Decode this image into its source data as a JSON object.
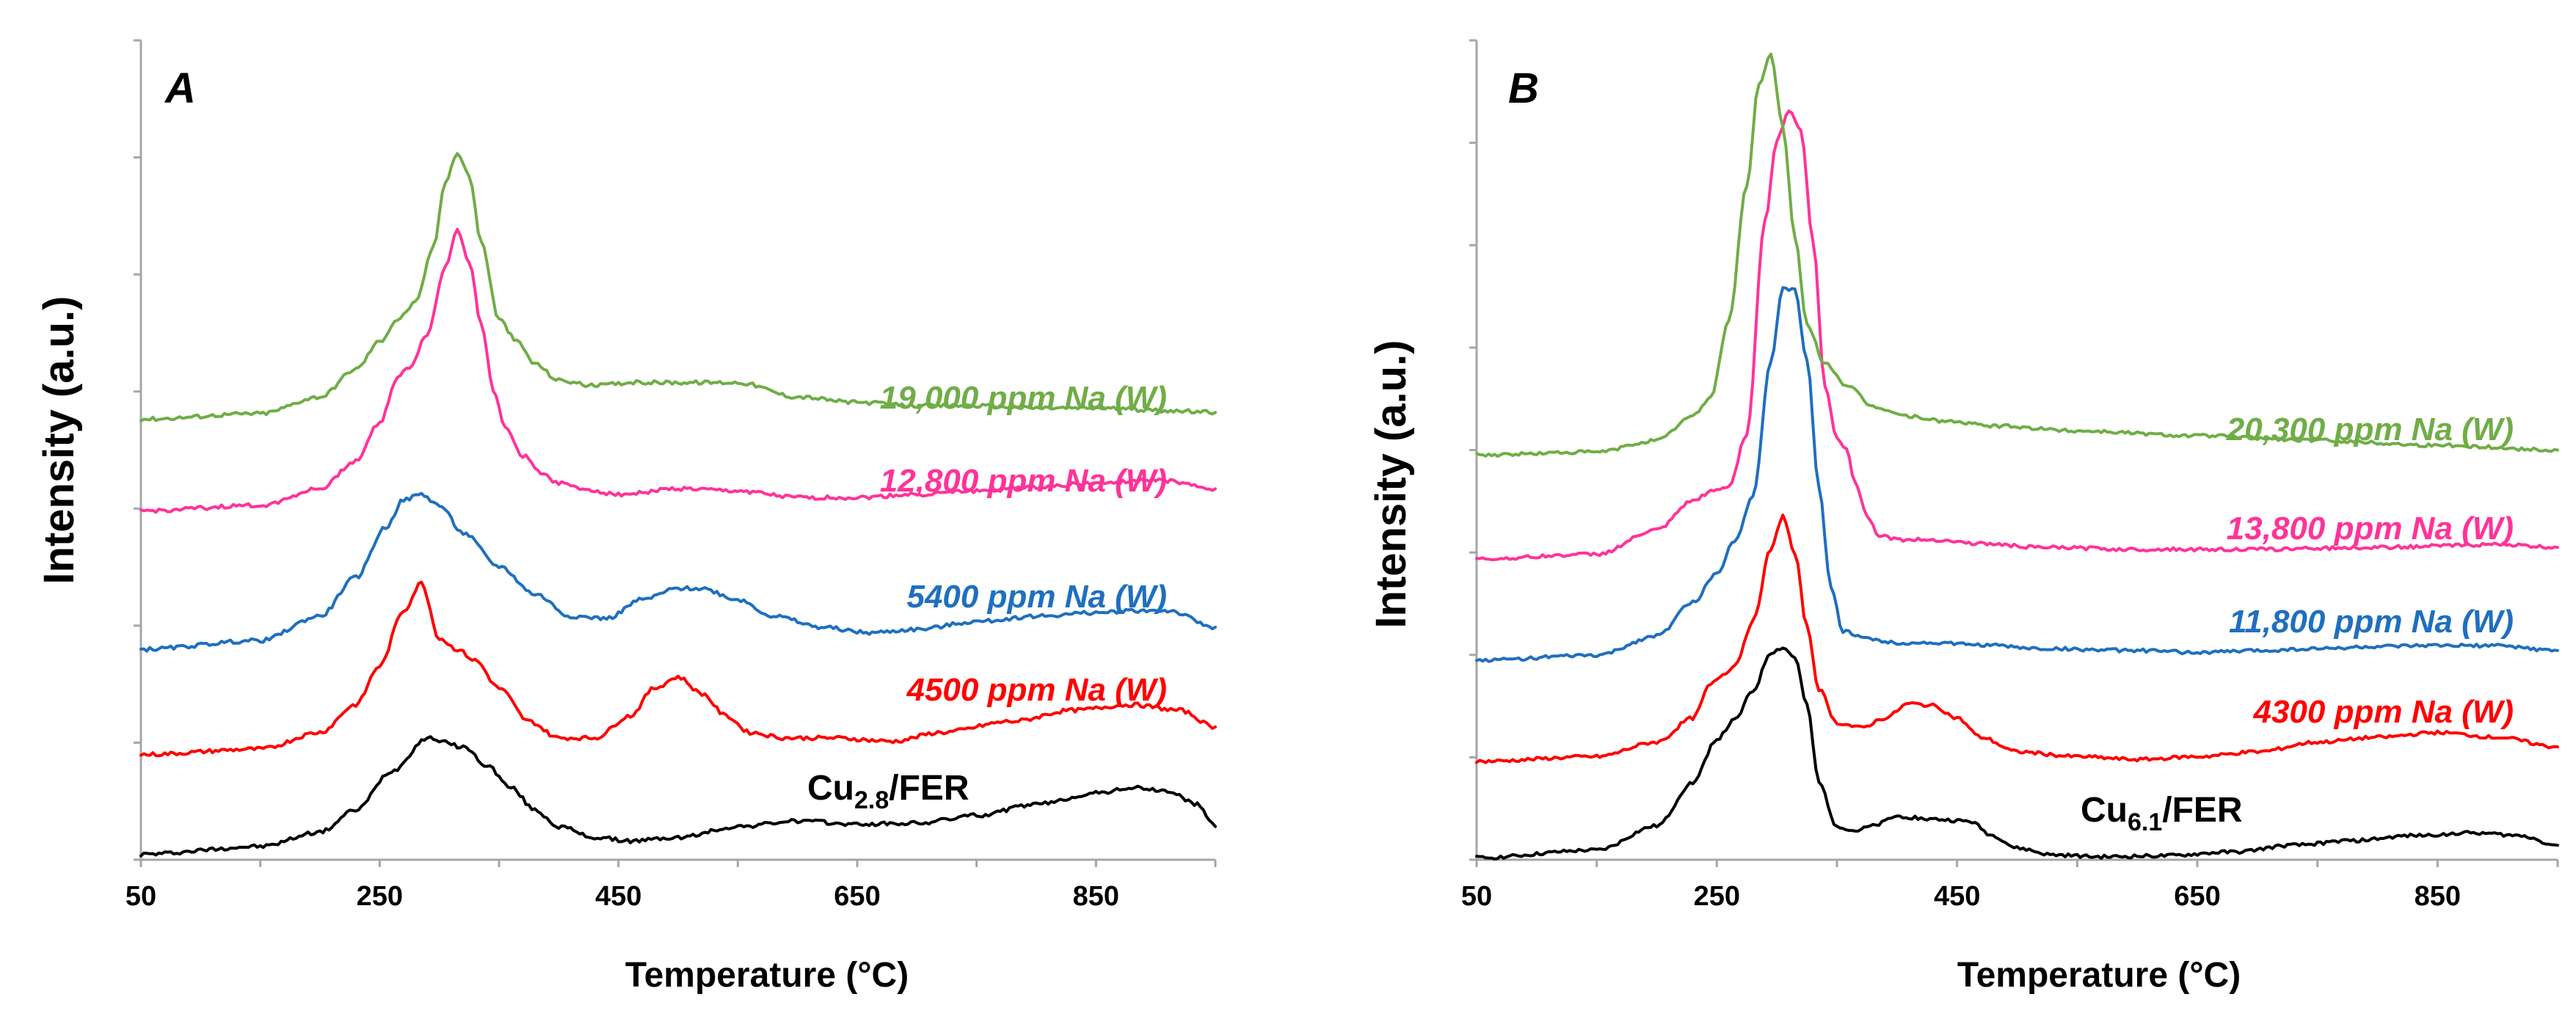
{
  "chart_data": [
    {
      "type": "line",
      "panel_label": "A",
      "xlabel": "Temperature (°C)",
      "ylabel": "Intensity (a.u.)",
      "xlim": [
        50,
        950
      ],
      "xticks": [
        50,
        250,
        450,
        650,
        850
      ],
      "ylim": [
        0,
        7.4
      ],
      "y_ticks_count": 7,
      "sample_label": "Cu",
      "sample_sub": "2.8",
      "sample_suffix": "/FER",
      "series": [
        {
          "name": "Cu2.8/FER",
          "color": "#000000",
          "offset": 0.0,
          "x": [
            50,
            150,
            200,
            230,
            260,
            290,
            320,
            340,
            360,
            380,
            400,
            430,
            460,
            500,
            550,
            600,
            650,
            700,
            750,
            800,
            850,
            880,
            910,
            935,
            950
          ],
          "y": [
            0.05,
            0.12,
            0.25,
            0.45,
            0.8,
            1.1,
            1.02,
            0.85,
            0.65,
            0.45,
            0.3,
            0.2,
            0.17,
            0.2,
            0.3,
            0.35,
            0.32,
            0.33,
            0.4,
            0.5,
            0.6,
            0.65,
            0.62,
            0.5,
            0.3
          ]
        },
        {
          "name": "4500 ppm Na (W)",
          "color": "#ff0000",
          "offset": 0.95,
          "label": "4500 ppm Na (W)",
          "x": [
            50,
            150,
            200,
            230,
            250,
            270,
            285,
            300,
            315,
            330,
            350,
            375,
            400,
            430,
            460,
            480,
            500,
            520,
            540,
            560,
            590,
            630,
            680,
            720,
            780,
            830,
            880,
            920,
            950
          ],
          "y": [
            0.0,
            0.05,
            0.2,
            0.45,
            0.8,
            1.3,
            1.55,
            1.05,
            0.95,
            0.85,
            0.6,
            0.3,
            0.15,
            0.15,
            0.35,
            0.6,
            0.7,
            0.55,
            0.35,
            0.2,
            0.15,
            0.15,
            0.12,
            0.2,
            0.3,
            0.4,
            0.45,
            0.4,
            0.25
          ]
        },
        {
          "name": "5400 ppm Na (W)",
          "color": "#1f6fbf",
          "offset": 1.9,
          "label": "5400 ppm Na (W)",
          "x": [
            50,
            150,
            200,
            230,
            255,
            270,
            285,
            300,
            320,
            350,
            380,
            410,
            440,
            470,
            500,
            520,
            550,
            580,
            620,
            660,
            700,
            750,
            800,
            850,
            880,
            910,
            950
          ],
          "y": [
            0.0,
            0.08,
            0.3,
            0.65,
            1.1,
            1.35,
            1.4,
            1.3,
            1.05,
            0.75,
            0.5,
            0.3,
            0.28,
            0.45,
            0.55,
            0.55,
            0.45,
            0.3,
            0.2,
            0.15,
            0.18,
            0.25,
            0.3,
            0.33,
            0.35,
            0.35,
            0.2
          ]
        },
        {
          "name": "12,800 ppm Na (W)",
          "color": "#ff3399",
          "offset": 3.15,
          "label": "12,800 ppm Na (W)",
          "x": [
            50,
            150,
            200,
            230,
            250,
            265,
            275,
            290,
            305,
            315,
            325,
            335,
            345,
            355,
            370,
            385,
            400,
            420,
            450,
            500,
            550,
            600,
            650,
            700,
            750,
            800,
            850,
            900,
            950
          ],
          "y": [
            0.0,
            0.05,
            0.2,
            0.45,
            0.8,
            1.2,
            1.3,
            1.6,
            2.2,
            2.55,
            2.25,
            1.7,
            1.1,
            0.75,
            0.5,
            0.35,
            0.25,
            0.2,
            0.15,
            0.2,
            0.18,
            0.12,
            0.12,
            0.15,
            0.18,
            0.22,
            0.25,
            0.28,
            0.2
          ]
        },
        {
          "name": "19,000 ppm Na (W)",
          "color": "#70ad47",
          "offset": 3.98,
          "label": "19,000 ppm Na (W)",
          "x": [
            50,
            150,
            200,
            230,
            250,
            265,
            280,
            295,
            305,
            315,
            325,
            335,
            350,
            365,
            380,
            400,
            430,
            460,
            500,
            550,
            600,
            650,
            700,
            750,
            800,
            850,
            900,
            950
          ],
          "y": [
            0.0,
            0.05,
            0.2,
            0.45,
            0.7,
            0.9,
            1.05,
            1.55,
            2.15,
            2.4,
            2.2,
            1.6,
            0.9,
            0.7,
            0.5,
            0.35,
            0.3,
            0.33,
            0.33,
            0.33,
            0.2,
            0.15,
            0.12,
            0.12,
            0.1,
            0.1,
            0.08,
            0.06
          ]
        }
      ]
    },
    {
      "type": "line",
      "panel_label": "B",
      "xlabel": "Temperature (°C)",
      "ylabel": "Intensity (a.u.)",
      "xlim": [
        50,
        950
      ],
      "xticks": [
        50,
        250,
        450,
        650,
        850
      ],
      "ylim": [
        0,
        8.5
      ],
      "y_ticks_count": 8,
      "sample_label": "Cu",
      "sample_sub": "6.1",
      "sample_suffix": "/FER",
      "series": [
        {
          "name": "Cu6.1/FER",
          "color": "#000000",
          "offset": 0.0,
          "x": [
            50,
            150,
            200,
            230,
            250,
            265,
            280,
            295,
            305,
            315,
            325,
            335,
            350,
            365,
            380,
            400,
            430,
            460,
            480,
            500,
            530,
            570,
            620,
            680,
            730,
            780,
            830,
            880,
            920,
            950
          ],
          "y": [
            0.02,
            0.1,
            0.35,
            0.8,
            1.25,
            1.45,
            1.75,
            2.15,
            2.2,
            2.1,
            1.6,
            0.8,
            0.35,
            0.3,
            0.35,
            0.45,
            0.42,
            0.4,
            0.25,
            0.12,
            0.05,
            0.03,
            0.04,
            0.08,
            0.15,
            0.2,
            0.25,
            0.28,
            0.25,
            0.15
          ]
        },
        {
          "name": "4300 ppm Na (W)",
          "color": "#ff0000",
          "offset": 1.02,
          "label": "4300 ppm Na (W)",
          "x": [
            50,
            150,
            200,
            230,
            245,
            255,
            265,
            280,
            295,
            305,
            315,
            325,
            335,
            350,
            370,
            390,
            410,
            430,
            450,
            470,
            500,
            550,
            600,
            650,
            700,
            750,
            800,
            850,
            900,
            950
          ],
          "y": [
            0.0,
            0.05,
            0.2,
            0.45,
            0.8,
            0.9,
            1.0,
            1.45,
            2.2,
            2.55,
            2.15,
            1.4,
            0.75,
            0.4,
            0.35,
            0.45,
            0.6,
            0.58,
            0.45,
            0.25,
            0.1,
            0.05,
            0.02,
            0.05,
            0.1,
            0.2,
            0.25,
            0.3,
            0.25,
            0.15
          ]
        },
        {
          "name": "11,800 ppm Na (W)",
          "color": "#1f6fbf",
          "offset": 2.07,
          "label": "11,800 ppm Na (W)",
          "x": [
            50,
            150,
            200,
            230,
            250,
            265,
            280,
            295,
            305,
            315,
            325,
            335,
            345,
            355,
            370,
            385,
            400,
            430,
            470,
            520,
            600,
            650,
            700,
            750,
            800,
            850,
            900,
            950
          ],
          "y": [
            0.0,
            0.05,
            0.25,
            0.6,
            0.9,
            1.25,
            1.7,
            3.1,
            3.85,
            3.85,
            3.1,
            1.8,
            0.75,
            0.3,
            0.25,
            0.2,
            0.18,
            0.18,
            0.16,
            0.12,
            0.1,
            0.08,
            0.1,
            0.12,
            0.14,
            0.15,
            0.15,
            0.1
          ]
        },
        {
          "name": "13,800 ppm Na (W)",
          "color": "#ff3399",
          "offset": 3.12,
          "label": "13,800 ppm Na (W)",
          "x": [
            50,
            150,
            200,
            230,
            245,
            260,
            275,
            290,
            300,
            310,
            320,
            330,
            340,
            350,
            358,
            365,
            375,
            385,
            400,
            430,
            470,
            520,
            600,
            700,
            800,
            900,
            950
          ],
          "y": [
            0.0,
            0.05,
            0.3,
            0.6,
            0.7,
            0.75,
            1.3,
            3.5,
            4.35,
            4.65,
            4.45,
            3.3,
            1.8,
            1.25,
            1.15,
            0.8,
            0.45,
            0.25,
            0.2,
            0.2,
            0.16,
            0.12,
            0.1,
            0.1,
            0.12,
            0.15,
            0.12
          ]
        },
        {
          "name": "20,300 ppm Na (W)",
          "color": "#70ad47",
          "offset": 4.2,
          "label": "20,300 ppm Na (W)",
          "x": [
            50,
            150,
            200,
            230,
            245,
            260,
            275,
            285,
            295,
            305,
            315,
            325,
            340,
            360,
            380,
            410,
            440,
            480,
            550,
            650,
            750,
            850,
            950
          ],
          "y": [
            0.0,
            0.03,
            0.15,
            0.4,
            0.6,
            1.4,
            2.8,
            3.85,
            4.15,
            3.4,
            2.25,
            1.35,
            0.95,
            0.7,
            0.5,
            0.4,
            0.35,
            0.3,
            0.25,
            0.2,
            0.15,
            0.1,
            0.05
          ]
        }
      ]
    }
  ]
}
